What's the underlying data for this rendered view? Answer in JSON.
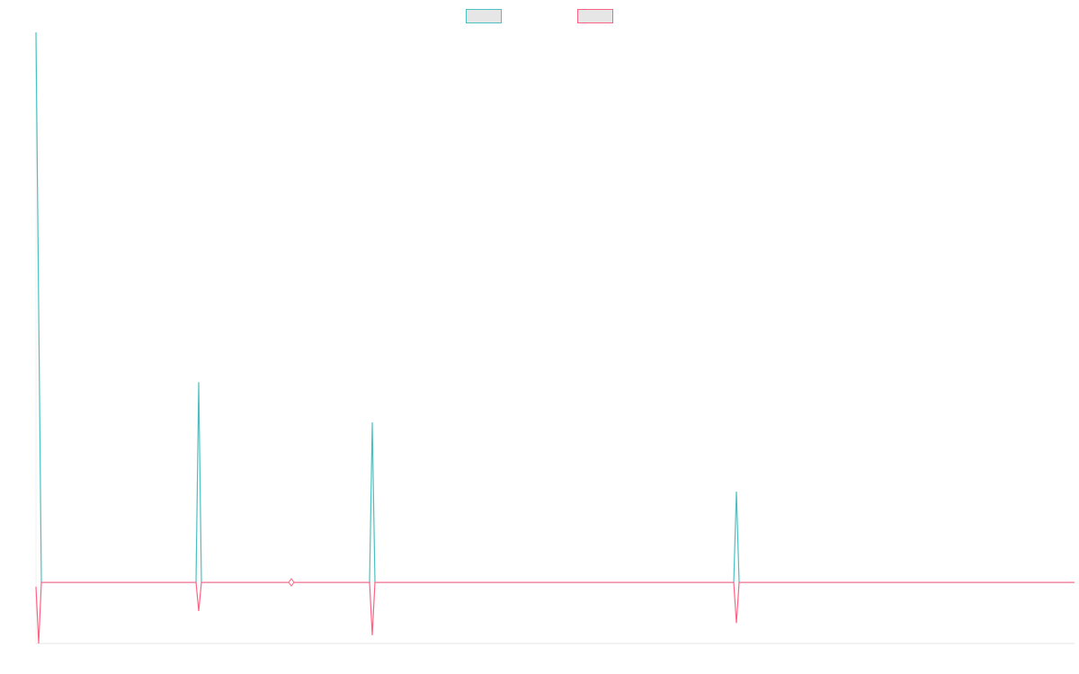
{
  "chart_data": {
    "type": "line",
    "x": [
      0,
      3,
      6,
      178,
      181,
      184,
      371,
      374,
      377,
      776,
      779,
      782,
      1155
    ],
    "series": [
      {
        "color": "#4bc0c0",
        "values": [
          100,
          50,
          0,
          0,
          36.4,
          0,
          0,
          29.1,
          0,
          0,
          16.5,
          0,
          0
        ]
      },
      {
        "color": "#ff6384",
        "values": [
          -0.8,
          -11.1,
          0,
          0,
          -5.2,
          0,
          0,
          -9.6,
          0,
          0,
          -7.4,
          0,
          0
        ]
      }
    ],
    "xlim": [
      0,
      1155
    ],
    "ylim": [
      -11.1,
      100
    ],
    "legend": "top"
  }
}
